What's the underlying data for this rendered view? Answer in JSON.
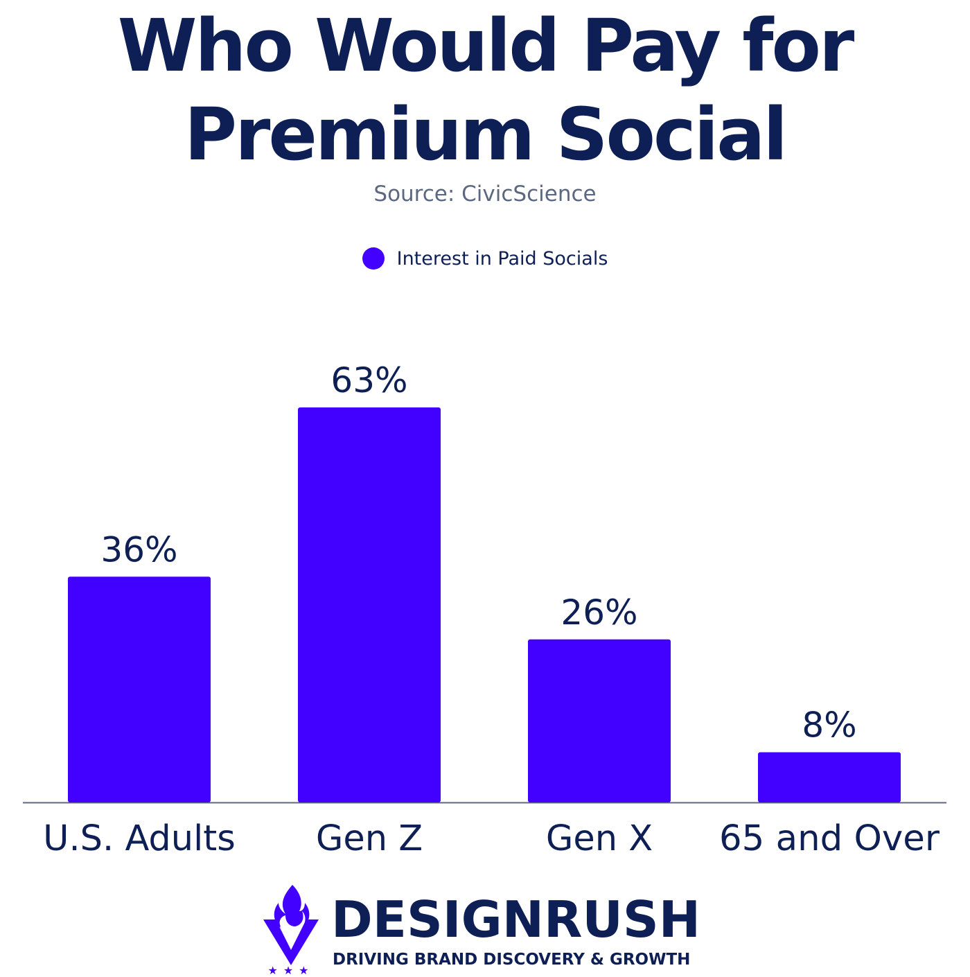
{
  "chart_data": {
    "type": "bar",
    "title": "Who Would Pay for Premium Social",
    "title_lines": [
      "Who Would Pay for",
      "Premium Social"
    ],
    "subtitle": "Source: CivicScience",
    "categories": [
      "U.S. Adults",
      "Gen Z",
      "Gen X",
      "65 and Over"
    ],
    "series": [
      {
        "name": "Interest in Paid Socials",
        "values": [
          36,
          63,
          26,
          8
        ],
        "labels": [
          "36%",
          "63%",
          "26%",
          "8%"
        ],
        "color": "#4200ff"
      }
    ],
    "ylim": [
      0,
      63
    ],
    "grid": false,
    "legend": "top-center",
    "axis_color": "#5c6780",
    "label_color": "#0d1f55"
  },
  "branding": {
    "name": "DESIGNRUSH",
    "tagline": "DRIVING BRAND DISCOVERY & GROWTH",
    "accent": "#4200ff",
    "dark": "#0d1f55",
    "logo_icon": "flame-v-stars-icon"
  }
}
